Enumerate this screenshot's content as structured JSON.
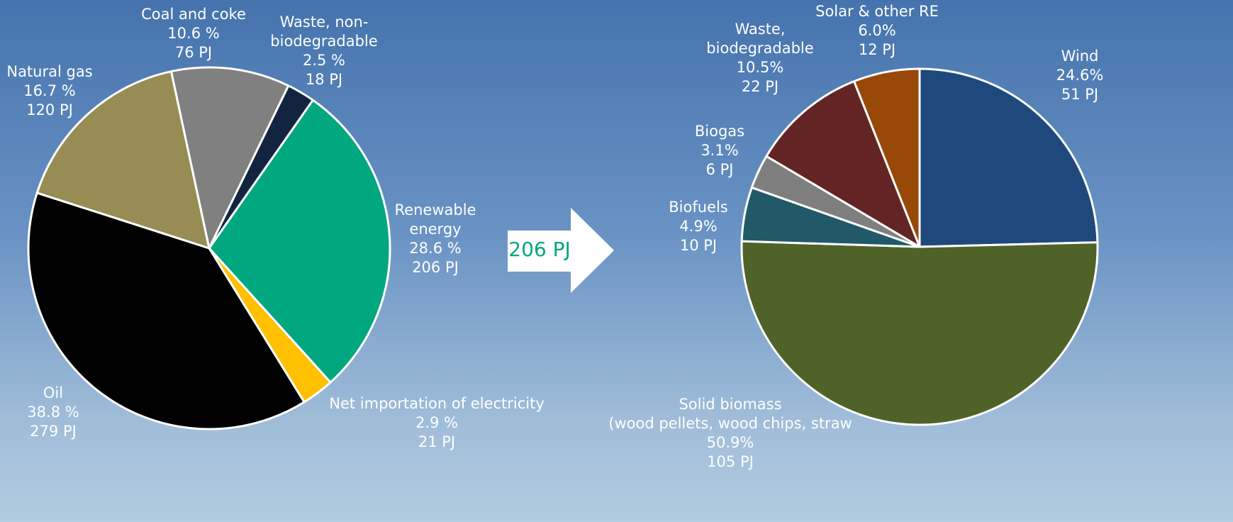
{
  "chart_data": [
    {
      "type": "pie",
      "categories": [
        "Renewable\nenergy",
        "Net importation of electricity",
        "Oil",
        "Natural gas",
        "Coal and coke",
        "Waste, non-\nbiodegradable"
      ],
      "values": [
        28.6,
        2.9,
        38.8,
        16.7,
        10.6,
        2.5
      ],
      "value_labels": [
        "28.6 %",
        "2.9 %",
        "38.8 %",
        "16.7 %",
        "10.6 %",
        "2.5 %"
      ],
      "pj_values": [
        206,
        21,
        279,
        120,
        76,
        18
      ],
      "pj_labels": [
        "206 PJ",
        "21 PJ",
        "279 PJ",
        "120 PJ",
        "76 PJ",
        "18 PJ"
      ],
      "colors": [
        "#00a77f",
        "#ffc000",
        "#000000",
        "#968c54",
        "#808080",
        "#12243f"
      ]
    },
    {
      "type": "pie",
      "categories": [
        "Wind",
        "Solid biomass\n(wood pellets, wood chips, straw",
        "Biofuels",
        "Biogas",
        "Waste,\nbiodegradable",
        "Solar & other RE"
      ],
      "values": [
        24.6,
        50.9,
        4.9,
        3.1,
        10.5,
        6.0
      ],
      "value_labels": [
        "24.6%",
        "50.9%",
        "4.9%",
        "3.1%",
        "10.5%",
        "6.0%"
      ],
      "pj_values": [
        51,
        105,
        10,
        6,
        22,
        12
      ],
      "pj_labels": [
        "51 PJ",
        "105 PJ",
        "10 PJ",
        "6 PJ",
        "22 PJ",
        "12 PJ"
      ],
      "colors": [
        "#1f497d",
        "#4f6228",
        "#215968",
        "#7f7f7f",
        "#632523",
        "#984807"
      ]
    }
  ],
  "arrow_label": "206 PJ"
}
